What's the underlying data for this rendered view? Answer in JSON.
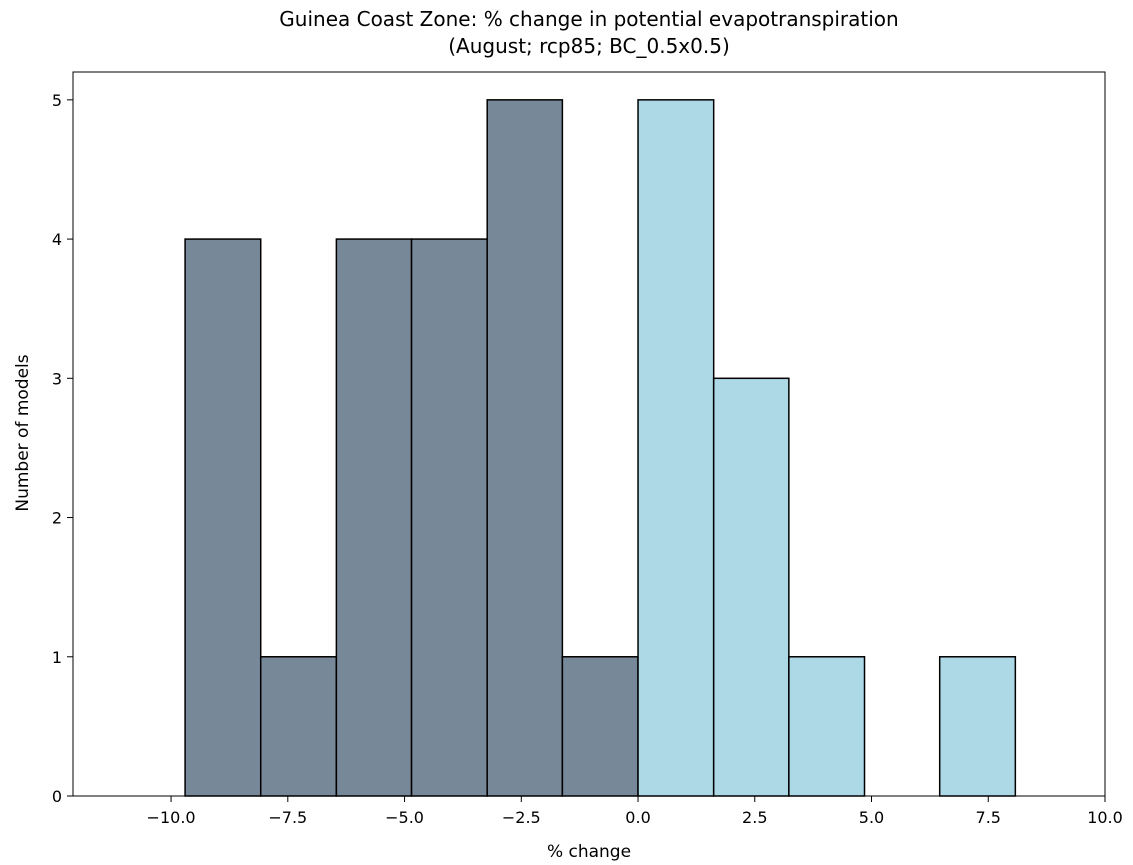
{
  "chart_data": {
    "type": "bar",
    "title_line1": "Guinea Coast Zone: % change in potential evapotranspiration",
    "title_line2": "(August; rcp85; BC_0.5x0.5)",
    "xlabel": "% change",
    "ylabel": "Number of models",
    "xlim": [
      -12.1,
      10.0
    ],
    "ylim": [
      0,
      5.2
    ],
    "xticks": [
      -10.0,
      -7.5,
      -5.0,
      -2.5,
      0.0,
      2.5,
      5.0,
      7.5,
      10.0
    ],
    "xtick_labels": [
      "−10.0",
      "−7.5",
      "−5.0",
      "−2.5",
      "0.0",
      "2.5",
      "5.0",
      "7.5",
      "10.0"
    ],
    "yticks": [
      0,
      1,
      2,
      3,
      4,
      5
    ],
    "ytick_labels": [
      "0",
      "1",
      "2",
      "3",
      "4",
      "5"
    ],
    "grid": false,
    "bin_edges": [
      -9.7,
      -8.08,
      -6.46,
      -4.85,
      -3.23,
      -1.62,
      0.0,
      1.62,
      3.23,
      4.85,
      6.46,
      8.08,
      9.7
    ],
    "counts": [
      4,
      1,
      4,
      4,
      5,
      1,
      5,
      3,
      1,
      0,
      1,
      0
    ],
    "colors": {
      "negative": "#778899",
      "positive": "#add8e6",
      "edge": "#000000"
    }
  }
}
